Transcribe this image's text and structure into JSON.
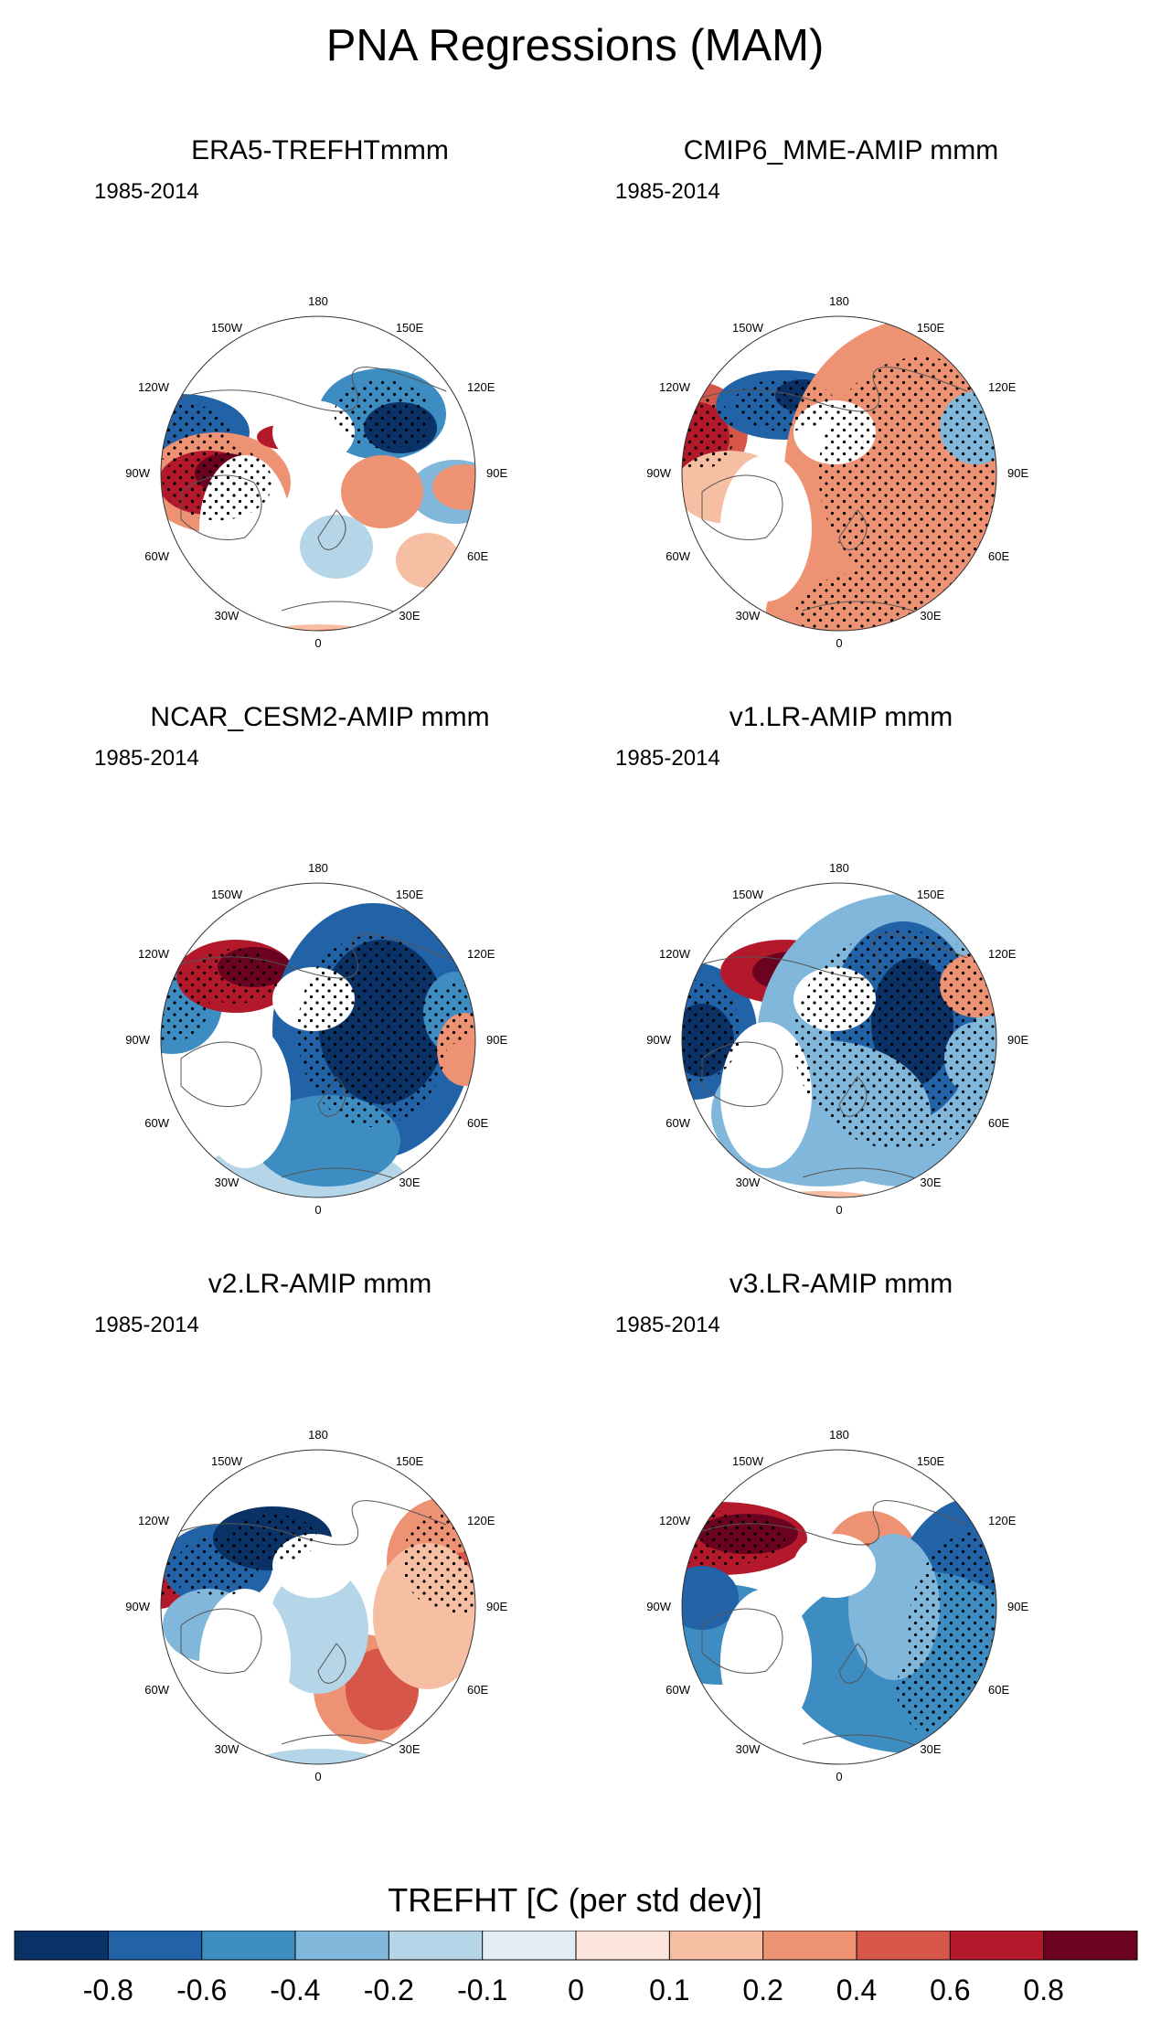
{
  "title": "PNA Regressions (MAM)",
  "panels": [
    {
      "title": "ERA5-TREFHTmmm",
      "years": "1985-2014"
    },
    {
      "title": "CMIP6_MME-AMIP  mmm",
      "years": "1985-2014"
    },
    {
      "title": "NCAR_CESM2-AMIP  mmm",
      "years": "1985-2014"
    },
    {
      "title": "v1.LR-AMIP  mmm",
      "years": "1985-2014"
    },
    {
      "title": "v2.LR-AMIP  mmm",
      "years": "1985-2014"
    },
    {
      "title": "v3.LR-AMIP  mmm",
      "years": "1985-2014"
    }
  ],
  "longitude_labels": {
    "top": "180",
    "nw1": "150W",
    "ne1": "150E",
    "nw2": "120W",
    "ne2": "120E",
    "w": "90W",
    "e": "90E",
    "sw2": "60W",
    "se2": "60E",
    "sw1": "30W",
    "se1": "30E",
    "bottom": "0"
  },
  "colorbar": {
    "title": "TREFHT [C (per std dev)]",
    "colors": [
      "#0b3266",
      "#2263a8",
      "#3d8cc2",
      "#80b7da",
      "#b5d6e8",
      "#e2ecf4",
      "#fbe5dc",
      "#f6bea3",
      "#ee9274",
      "#d6574a",
      "#b3192b",
      "#6a0220"
    ],
    "tick_labels": [
      "-0.8",
      "-0.6",
      "-0.4",
      "-0.2",
      "-0.1",
      "0",
      "0.1",
      "0.2",
      "0.4",
      "0.6",
      "0.8"
    ]
  }
}
